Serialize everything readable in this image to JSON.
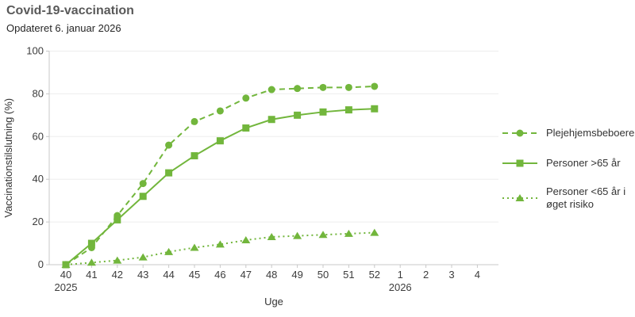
{
  "header": {
    "title": "Covid-19-vaccination",
    "subtitle": "Opdateret 6. januar 2026"
  },
  "colors": {
    "series_green": "#72B63C",
    "axis_line": "#c8c8c8",
    "gridline": "#ededed",
    "tick_text": "#3c3c3c",
    "title_text": "#595959"
  },
  "chart_data": {
    "type": "line",
    "title": "Covid-19-vaccination",
    "subtitle": "Opdateret 6. januar 2026",
    "xlabel": "Uge",
    "ylabel": "Vaccinationstilslutning (%)",
    "ylim": [
      0,
      100
    ],
    "yticks": [
      0,
      20,
      40,
      60,
      80,
      100
    ],
    "grid": true,
    "legend_position": "right",
    "color": "#72B63C",
    "categories": [
      "40",
      "41",
      "42",
      "43",
      "44",
      "45",
      "46",
      "47",
      "48",
      "49",
      "50",
      "51",
      "52",
      "1",
      "2",
      "3",
      "4"
    ],
    "x_year_labels": [
      {
        "index": 0,
        "label": "2025"
      },
      {
        "index": 13,
        "label": "2026"
      }
    ],
    "series": [
      {
        "name": "Plejehjemsbeboere",
        "line_style": "dashed",
        "marker": "circle",
        "values": [
          0,
          8,
          23,
          38,
          56,
          67,
          72,
          78,
          82,
          82.5,
          83,
          83,
          83.5
        ]
      },
      {
        "name": "Personer >65 år",
        "line_style": "solid",
        "marker": "square",
        "values": [
          0,
          10,
          21,
          32,
          43,
          51,
          58,
          64,
          68,
          70,
          71.5,
          72.5,
          73
        ]
      },
      {
        "name": "Personer <65 år i øget risiko",
        "line_style": "dotted",
        "marker": "triangle",
        "values": [
          0,
          1,
          2,
          3.5,
          6,
          8,
          9.5,
          11.5,
          13,
          13.5,
          14,
          14.5,
          15
        ]
      }
    ]
  }
}
